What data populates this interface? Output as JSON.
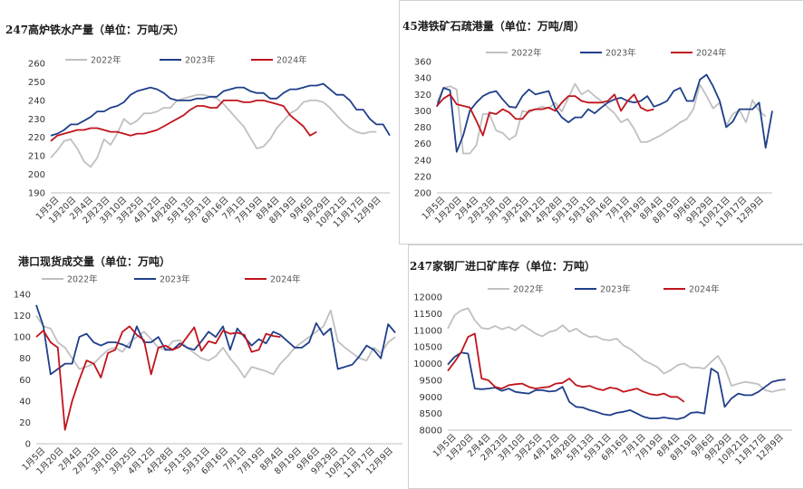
{
  "colors": {
    "y2022": "#c0c0c0",
    "y2023": "#1f3f8a",
    "y2024": "#c0141c"
  },
  "chart_data": [
    {
      "type": "line",
      "title": "247高炉铁水产量（单位：万吨/天）",
      "ylim": [
        190,
        260
      ],
      "yticks": [
        190,
        200,
        210,
        220,
        230,
        240,
        250,
        260
      ],
      "x_ticks": [
        "1月5日",
        "1月20日",
        "2月4日",
        "2月23日",
        "3月10日",
        "3月25日",
        "4月12日",
        "4月28日",
        "5月13日",
        "5月31日",
        "6月16日",
        "7月1日",
        "7月19日",
        "8月4日",
        "8月19日",
        "9月6日",
        "9月29日",
        "10月21日",
        "11月17日",
        "12月9日"
      ],
      "legend": [
        "2022年",
        "2023年",
        "2024年"
      ],
      "series": [
        {
          "name": "2022年",
          "values": [
            209,
            213,
            218,
            219,
            214,
            207,
            204,
            209,
            219,
            216,
            222,
            230,
            227,
            229,
            233,
            233,
            234,
            236,
            236,
            240,
            241,
            242,
            243,
            243,
            242,
            241,
            238,
            234,
            230,
            226,
            220,
            214,
            215,
            219,
            225,
            229,
            233,
            235,
            239,
            240,
            240,
            239,
            236,
            232,
            228,
            225,
            223,
            222,
            223,
            223
          ]
        },
        {
          "name": "2023年",
          "values": [
            221,
            222,
            224,
            227,
            227,
            229,
            231,
            234,
            234,
            236,
            237,
            239,
            243,
            245,
            246,
            247,
            246,
            244,
            241,
            240,
            240,
            240,
            241,
            241,
            242,
            242,
            245,
            246,
            247,
            247,
            245,
            244,
            244,
            241,
            241,
            244,
            246,
            246,
            247,
            248,
            248,
            249,
            246,
            243,
            243,
            240,
            235,
            235,
            230,
            227,
            227,
            221
          ]
        },
        {
          "name": "2024年",
          "values": [
            218,
            221,
            222,
            223,
            224,
            224,
            225,
            225,
            224,
            223,
            223,
            222,
            221,
            222,
            222,
            223,
            224,
            226,
            228,
            230,
            232,
            235,
            237,
            237,
            236,
            236,
            240,
            240,
            240,
            239,
            239,
            240,
            240,
            239,
            238,
            237,
            232,
            229,
            226,
            221,
            223
          ]
        }
      ]
    },
    {
      "type": "line",
      "title": "45港铁矿石疏港量（单位：万吨/周）",
      "ylim": [
        200,
        360
      ],
      "yticks": [
        200,
        220,
        240,
        260,
        280,
        300,
        320,
        340,
        360
      ],
      "x_ticks": [
        "1月5日",
        "1月20日",
        "2月4日",
        "2月23日",
        "3月10日",
        "3月25日",
        "4月12日",
        "4月28日",
        "5月13日",
        "5月31日",
        "6月16日",
        "7月1日",
        "7月19日",
        "8月4日",
        "8月19日",
        "9月6日",
        "9月29日",
        "10月21日",
        "11月17日",
        "12月9日"
      ],
      "legend": [
        "2022年",
        "2023年",
        "2024年"
      ],
      "series": [
        {
          "name": "2022年",
          "values": [
            310,
            328,
            330,
            326,
            248,
            248,
            258,
            296,
            296,
            276,
            273,
            265,
            270,
            300,
            298,
            302,
            305,
            303,
            310,
            299,
            316,
            333,
            320,
            325,
            318,
            312,
            304,
            297,
            286,
            290,
            278,
            262,
            262,
            266,
            270,
            275,
            280,
            286,
            290,
            302,
            332,
            318,
            303,
            310,
            282,
            296,
            301,
            286,
            313,
            300,
            293
          ]
        },
        {
          "name": "2023年",
          "values": [
            305,
            328,
            325,
            250,
            270,
            300,
            310,
            318,
            322,
            324,
            314,
            305,
            304,
            318,
            326,
            320,
            322,
            324,
            303,
            292,
            286,
            292,
            292,
            302,
            297,
            304,
            310,
            314,
            316,
            312,
            310,
            312,
            318,
            305,
            308,
            312,
            324,
            328,
            312,
            312,
            338,
            344,
            330,
            312,
            280,
            287,
            302,
            302,
            302,
            310,
            255,
            300
          ]
        },
        {
          "name": "2024年",
          "values": [
            306,
            315,
            320,
            308,
            306,
            304,
            288,
            270,
            298,
            296,
            302,
            298,
            290,
            290,
            300,
            302,
            302,
            304,
            300,
            310,
            318,
            318,
            312,
            310,
            310,
            310,
            312,
            320,
            300,
            312,
            320,
            304,
            300,
            302
          ]
        }
      ]
    },
    {
      "type": "line",
      "title": "港口现货成交量（单位：万吨）",
      "ylim": [
        0,
        140
      ],
      "yticks": [
        0,
        20,
        40,
        60,
        80,
        100,
        120,
        140
      ],
      "x_ticks": [
        "1月5日",
        "1月20日",
        "2月4日",
        "2月23日",
        "3月10日",
        "3月25日",
        "4月12日",
        "4月28日",
        "5月13日",
        "5月31日",
        "6月16日",
        "7月1日",
        "7月19日",
        "8月4日",
        "8月19日",
        "9月6日",
        "9月29日",
        "10月21日",
        "11月17日",
        "12月9日"
      ],
      "legend": [
        "2022年",
        "2023年",
        "2024年"
      ],
      "series": [
        {
          "name": "2022年",
          "values": [
            120,
            110,
            108,
            95,
            90,
            80,
            70,
            72,
            75,
            82,
            88,
            90,
            86,
            95,
            100,
            105,
            98,
            90,
            88,
            96,
            97,
            90,
            85,
            80,
            78,
            82,
            90,
            80,
            72,
            62,
            72,
            70,
            68,
            65,
            75,
            82,
            90,
            95,
            100,
            105,
            110,
            125,
            96,
            90,
            85,
            80,
            78,
            90,
            85,
            95,
            100
          ]
        },
        {
          "name": "2023年",
          "values": [
            130,
            110,
            65,
            70,
            75,
            75,
            100,
            103,
            95,
            92,
            95,
            95,
            93,
            90,
            110,
            95,
            95,
            100,
            88,
            88,
            94,
            90,
            88,
            96,
            105,
            100,
            110,
            88,
            108,
            100,
            92,
            98,
            94,
            105,
            102,
            96,
            90,
            90,
            95,
            113,
            102,
            108,
            70,
            72,
            74,
            82,
            92,
            88,
            80,
            112,
            104
          ]
        },
        {
          "name": "2024年",
          "values": [
            100,
            106,
            95,
            90,
            13,
            40,
            60,
            78,
            75,
            62,
            85,
            88,
            105,
            110,
            102,
            97,
            65,
            90,
            92,
            88,
            91,
            100,
            109,
            87,
            96,
            94,
            106,
            103,
            104,
            102,
            86,
            88,
            103,
            101,
            100
          ]
        }
      ]
    },
    {
      "type": "line",
      "title": "247家钢厂进口矿库存（单位：万吨）",
      "ylim": [
        8000,
        12000
      ],
      "yticks": [
        8000,
        8500,
        9000,
        9500,
        10000,
        10500,
        11000,
        11500,
        12000
      ],
      "x_ticks": [
        "1月5日",
        "1月20日",
        "2月4日",
        "2月23日",
        "3月10日",
        "3月25日",
        "4月12日",
        "4月28日",
        "5月13日",
        "5月31日",
        "6月16日",
        "7月1日",
        "7月19日",
        "8月4日",
        "8月19日",
        "9月6日",
        "9月29日",
        "10月21日",
        "11月17日",
        "12月9日"
      ],
      "legend": [
        "2022年",
        "2023年",
        "2024年"
      ],
      "series": [
        {
          "name": "2022年",
          "values": [
            11050,
            11450,
            11600,
            11660,
            11300,
            11070,
            11040,
            11130,
            11030,
            11100,
            11000,
            11160,
            11040,
            10900,
            10820,
            10950,
            11000,
            11150,
            10960,
            11050,
            10900,
            10800,
            10820,
            10720,
            10700,
            10750,
            10550,
            10440,
            10280,
            10100,
            10000,
            9900,
            9700,
            9800,
            9950,
            10000,
            9880,
            9880,
            9850,
            10050,
            10230,
            9900,
            9330,
            9400,
            9450,
            9420,
            9380,
            9200,
            9150,
            9200,
            9230
          ]
        },
        {
          "name": "2023年",
          "values": [
            9970,
            10200,
            10330,
            10300,
            9250,
            9230,
            9250,
            9280,
            9180,
            9250,
            9150,
            9120,
            9100,
            9200,
            9200,
            9160,
            9180,
            9300,
            8850,
            8700,
            8680,
            8600,
            8550,
            8480,
            8450,
            8520,
            8550,
            8600,
            8500,
            8400,
            8350,
            8350,
            8380,
            8350,
            8330,
            8380,
            8520,
            8540,
            8500,
            9850,
            9720,
            8700,
            8950,
            9100,
            9050,
            9050,
            9150,
            9300,
            9450,
            9500,
            9520
          ]
        },
        {
          "name": "2024年",
          "values": [
            9780,
            10050,
            10350,
            10800,
            10900,
            9550,
            9500,
            9300,
            9250,
            9350,
            9380,
            9400,
            9300,
            9250,
            9280,
            9300,
            9400,
            9420,
            9550,
            9350,
            9300,
            9330,
            9250,
            9200,
            9280,
            9250,
            9150,
            9200,
            9250,
            9150,
            9080,
            9050,
            9100,
            9000,
            9000,
            8850
          ]
        }
      ]
    }
  ]
}
